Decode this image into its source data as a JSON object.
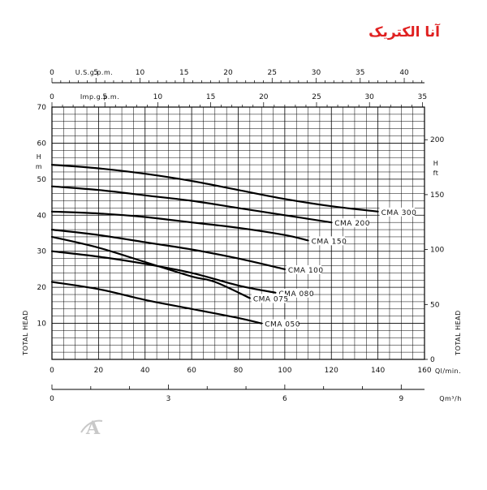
{
  "brand": {
    "logo_text": "آنا الکتریک",
    "logo_color": "#e02020",
    "watermark_letter": "A"
  },
  "chart_data": {
    "type": "line",
    "grid": true,
    "x_primary": {
      "label": "Ql/min.",
      "ticks": [
        0,
        20,
        40,
        60,
        80,
        100,
        120,
        140,
        160
      ],
      "range": [
        0,
        160
      ]
    },
    "x_m3h": {
      "label": "Qm³/h",
      "ticks": [
        0,
        3,
        6,
        9
      ],
      "range": [
        0,
        9.6
      ]
    },
    "x_usgpm": {
      "label": "U.S.g.p.m.",
      "ticks": [
        0,
        5,
        10,
        15,
        20,
        25,
        30,
        35,
        40
      ],
      "range": [
        0,
        42.3
      ]
    },
    "x_impgpm": {
      "label": "Imp.g.p.m.",
      "ticks": [
        0,
        5,
        10,
        15,
        20,
        25,
        30,
        35
      ],
      "range": [
        0,
        35.2
      ]
    },
    "y_left": {
      "label": "TOTAL HEAD",
      "unit": "H\nm",
      "ticks": [
        10,
        20,
        30,
        40,
        50,
        60,
        70
      ],
      "range": [
        0,
        70
      ]
    },
    "y_right": {
      "label": "TOTAL HEAD",
      "unit": "H\nft",
      "ticks": [
        0,
        50,
        100,
        150,
        200
      ],
      "range": [
        0,
        229.7
      ]
    },
    "series": [
      {
        "name": "CMA 300",
        "x": [
          0,
          20,
          40,
          60,
          80,
          100,
          120,
          140
        ],
        "y": [
          54,
          53,
          51.5,
          49.5,
          47,
          44.5,
          42.5,
          41
        ]
      },
      {
        "name": "CMA 200",
        "x": [
          0,
          20,
          40,
          60,
          80,
          100,
          120
        ],
        "y": [
          48,
          47,
          45.5,
          44,
          42,
          40,
          38
        ]
      },
      {
        "name": "CMA 150",
        "x": [
          0,
          20,
          40,
          60,
          80,
          100,
          110
        ],
        "y": [
          41,
          40.5,
          39.5,
          38,
          36.5,
          34.5,
          33
        ]
      },
      {
        "name": "CMA 100",
        "x": [
          0,
          20,
          40,
          60,
          80,
          100
        ],
        "y": [
          36,
          34.5,
          32.5,
          30.5,
          28,
          25
        ]
      },
      {
        "name": "CMA 080",
        "x": [
          0,
          20,
          40,
          60,
          80,
          96
        ],
        "y": [
          30,
          28.5,
          26.5,
          24,
          20.5,
          18.5
        ]
      },
      {
        "name": "CMA 075",
        "x": [
          0,
          20,
          40,
          60,
          70,
          85
        ],
        "y": [
          34,
          31,
          27,
          23,
          21.5,
          17
        ]
      },
      {
        "name": "CMA 050",
        "x": [
          0,
          20,
          40,
          60,
          80,
          90
        ],
        "y": [
          21.5,
          19.5,
          16.5,
          14,
          11.5,
          10
        ]
      }
    ]
  }
}
